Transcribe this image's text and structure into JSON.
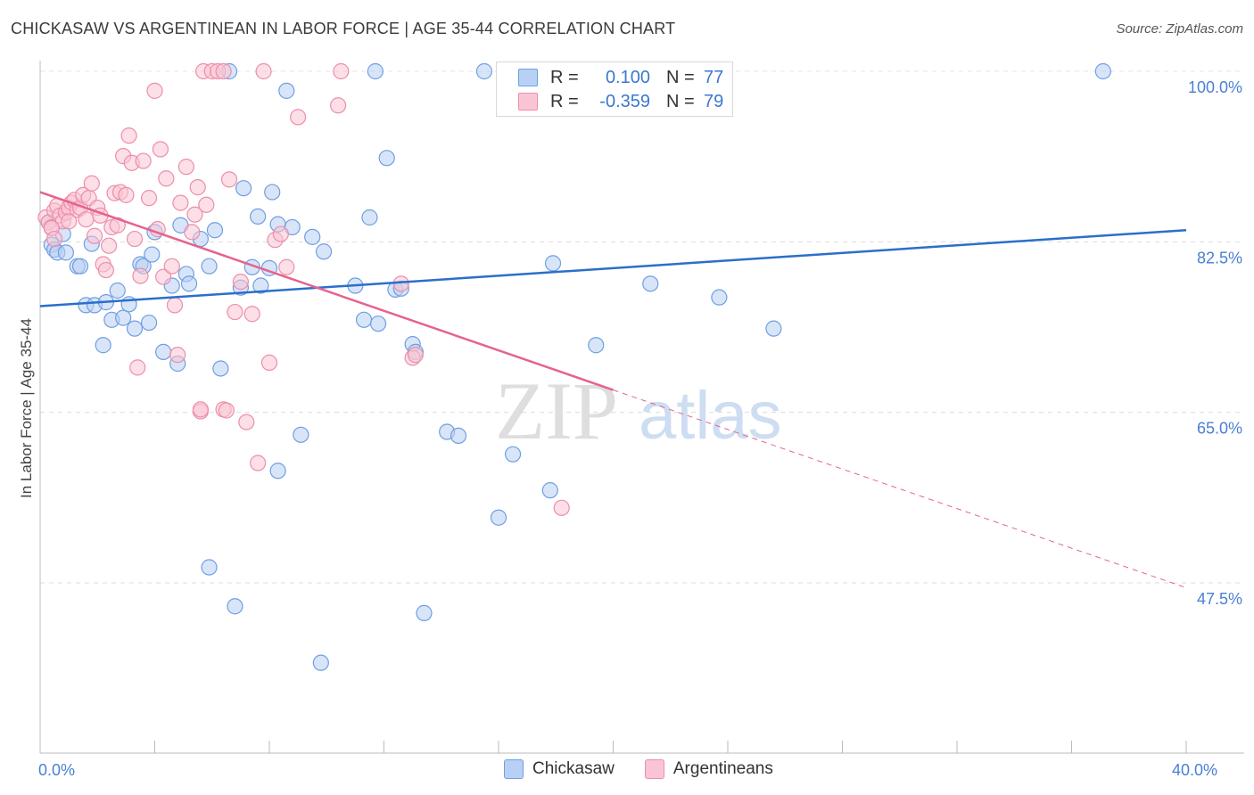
{
  "title": "CHICKASAW VS ARGENTINEAN IN LABOR FORCE | AGE 35-44 CORRELATION CHART",
  "source": "Source: ZipAtlas.com",
  "watermark": {
    "zip": "ZIP",
    "atlas": "atlas"
  },
  "legend": {
    "r_label": "R =",
    "n_label": "N =",
    "rows": [
      {
        "name": "Chickasaw",
        "r": "0.100",
        "n": "77",
        "fill": "#b8d0f4",
        "stroke": "#6f9fe0"
      },
      {
        "name": "Argentineans",
        "r": "-0.359",
        "n": "79",
        "fill": "#f9c5d4",
        "stroke": "#ec8eaa"
      }
    ]
  },
  "chart_data": {
    "type": "scatter",
    "xlabel": "",
    "ylabel": "In Labor Force | Age 35-44",
    "xlim": [
      0,
      40
    ],
    "ylim": [
      30,
      102
    ],
    "x_tick_labels": [
      {
        "value": 0,
        "label": "0.0%"
      },
      {
        "value": 40,
        "label": "40.0%"
      }
    ],
    "y_tick_labels": [
      {
        "value": 100,
        "label": "100.0%"
      },
      {
        "value": 82.5,
        "label": "82.5%"
      },
      {
        "value": 65,
        "label": "65.0%"
      },
      {
        "value": 47.5,
        "label": "47.5%"
      }
    ],
    "series": [
      {
        "name": "Chickasaw",
        "color": "#6f9fe0",
        "fill": "#b8d0f4",
        "trend": {
          "x0": 0,
          "y0": 75.9,
          "x1": 40,
          "y1": 83.7,
          "dashed_from": null
        },
        "points": [
          [
            0.3,
            84.5
          ],
          [
            0.4,
            82.2
          ],
          [
            0.5,
            81.7
          ],
          [
            0.6,
            81.4
          ],
          [
            0.8,
            83.3
          ],
          [
            0.9,
            81.4
          ],
          [
            1.3,
            80.0
          ],
          [
            1.4,
            80.0
          ],
          [
            1.6,
            76.0
          ],
          [
            1.8,
            82.3
          ],
          [
            1.9,
            76.0
          ],
          [
            2.2,
            71.9
          ],
          [
            2.3,
            76.3
          ],
          [
            2.5,
            74.5
          ],
          [
            2.7,
            77.5
          ],
          [
            2.9,
            74.7
          ],
          [
            3.1,
            76.1
          ],
          [
            3.3,
            73.6
          ],
          [
            3.5,
            80.2
          ],
          [
            3.6,
            80.0
          ],
          [
            3.8,
            74.2
          ],
          [
            3.9,
            81.2
          ],
          [
            4.0,
            83.5
          ],
          [
            4.3,
            71.2
          ],
          [
            4.6,
            78.0
          ],
          [
            4.8,
            70.0
          ],
          [
            4.9,
            84.2
          ],
          [
            5.1,
            79.2
          ],
          [
            5.2,
            78.2
          ],
          [
            5.6,
            82.8
          ],
          [
            5.9,
            80.0
          ],
          [
            6.1,
            83.7
          ],
          [
            6.3,
            69.5
          ],
          [
            6.6,
            100.0
          ],
          [
            7.0,
            77.8
          ],
          [
            7.1,
            88.0
          ],
          [
            7.4,
            79.9
          ],
          [
            7.6,
            85.1
          ],
          [
            7.7,
            78.0
          ],
          [
            8.0,
            79.8
          ],
          [
            8.1,
            87.6
          ],
          [
            8.3,
            84.3
          ],
          [
            8.6,
            98.0
          ],
          [
            8.8,
            84.0
          ],
          [
            9.5,
            83.0
          ],
          [
            9.9,
            81.5
          ],
          [
            11.0,
            78.0
          ],
          [
            11.3,
            74.5
          ],
          [
            11.5,
            85.0
          ],
          [
            11.8,
            74.1
          ],
          [
            12.1,
            91.1
          ],
          [
            12.4,
            77.6
          ],
          [
            12.6,
            77.7
          ],
          [
            13.0,
            72.0
          ],
          [
            13.1,
            71.2
          ],
          [
            14.2,
            63.0
          ],
          [
            14.6,
            62.6
          ],
          [
            15.5,
            100.0
          ],
          [
            16.0,
            54.2
          ],
          [
            16.5,
            60.7
          ],
          [
            17.5,
            100.0
          ],
          [
            17.8,
            57.0
          ],
          [
            17.9,
            80.3
          ],
          [
            19.3,
            100.0
          ],
          [
            19.4,
            71.9
          ],
          [
            21.3,
            78.2
          ],
          [
            23.7,
            76.8
          ],
          [
            25.6,
            73.6
          ],
          [
            37.1,
            100.0
          ],
          [
            9.1,
            62.7
          ],
          [
            8.3,
            59.0
          ],
          [
            5.9,
            49.1
          ],
          [
            6.8,
            45.1
          ],
          [
            13.4,
            44.4
          ],
          [
            9.8,
            39.3
          ],
          [
            17.2,
            100.0
          ],
          [
            11.7,
            100.0
          ]
        ]
      },
      {
        "name": "Argentineans",
        "color": "#ec8eaa",
        "fill": "#f9c5d4",
        "trend": {
          "x0": 0,
          "y0": 87.6,
          "x1": 40,
          "y1": 47.0,
          "dashed_from": 20.0
        },
        "points": [
          [
            0.2,
            85.0
          ],
          [
            0.3,
            84.5
          ],
          [
            0.4,
            84.0
          ],
          [
            0.5,
            85.7
          ],
          [
            0.6,
            86.2
          ],
          [
            0.7,
            85.2
          ],
          [
            0.8,
            84.6
          ],
          [
            0.9,
            85.5
          ],
          [
            1.0,
            86.0
          ],
          [
            1.1,
            86.5
          ],
          [
            1.2,
            86.8
          ],
          [
            1.3,
            85.8
          ],
          [
            1.4,
            86.0
          ],
          [
            1.5,
            87.3
          ],
          [
            1.6,
            84.8
          ],
          [
            1.7,
            87.0
          ],
          [
            1.8,
            88.5
          ],
          [
            1.9,
            83.1
          ],
          [
            2.0,
            86.0
          ],
          [
            2.1,
            85.2
          ],
          [
            2.2,
            80.2
          ],
          [
            2.3,
            79.6
          ],
          [
            2.5,
            84.0
          ],
          [
            2.6,
            87.5
          ],
          [
            2.7,
            84.2
          ],
          [
            2.8,
            87.6
          ],
          [
            2.9,
            91.3
          ],
          [
            3.0,
            87.3
          ],
          [
            3.1,
            93.4
          ],
          [
            3.2,
            90.6
          ],
          [
            3.3,
            82.8
          ],
          [
            3.4,
            69.6
          ],
          [
            3.5,
            79.0
          ],
          [
            3.6,
            90.8
          ],
          [
            3.8,
            87.0
          ],
          [
            4.0,
            98.0
          ],
          [
            4.1,
            83.8
          ],
          [
            4.2,
            92.0
          ],
          [
            4.3,
            78.9
          ],
          [
            4.4,
            89.0
          ],
          [
            4.6,
            80.0
          ],
          [
            4.7,
            76.0
          ],
          [
            4.8,
            70.9
          ],
          [
            4.9,
            86.5
          ],
          [
            5.1,
            90.2
          ],
          [
            5.3,
            83.5
          ],
          [
            5.4,
            85.3
          ],
          [
            5.5,
            88.1
          ],
          [
            5.6,
            65.1
          ],
          [
            5.7,
            100.0
          ],
          [
            5.8,
            86.3
          ],
          [
            6.0,
            100.0
          ],
          [
            6.2,
            100.0
          ],
          [
            6.4,
            65.3
          ],
          [
            6.5,
            65.2
          ],
          [
            6.6,
            88.9
          ],
          [
            6.8,
            75.3
          ],
          [
            7.0,
            78.4
          ],
          [
            7.2,
            64.0
          ],
          [
            7.4,
            75.1
          ],
          [
            7.6,
            59.8
          ],
          [
            7.8,
            100.0
          ],
          [
            8.0,
            70.1
          ],
          [
            8.2,
            82.7
          ],
          [
            8.4,
            83.3
          ],
          [
            8.6,
            79.9
          ],
          [
            9.0,
            95.3
          ],
          [
            10.4,
            96.5
          ],
          [
            10.5,
            100.0
          ],
          [
            12.6,
            78.2
          ],
          [
            13.0,
            70.6
          ],
          [
            13.1,
            70.9
          ],
          [
            18.2,
            55.2
          ],
          [
            0.4,
            83.9
          ],
          [
            0.5,
            82.8
          ],
          [
            2.4,
            82.1
          ],
          [
            1.0,
            84.6
          ],
          [
            6.4,
            100.0
          ],
          [
            5.6,
            65.3
          ]
        ]
      }
    ]
  }
}
